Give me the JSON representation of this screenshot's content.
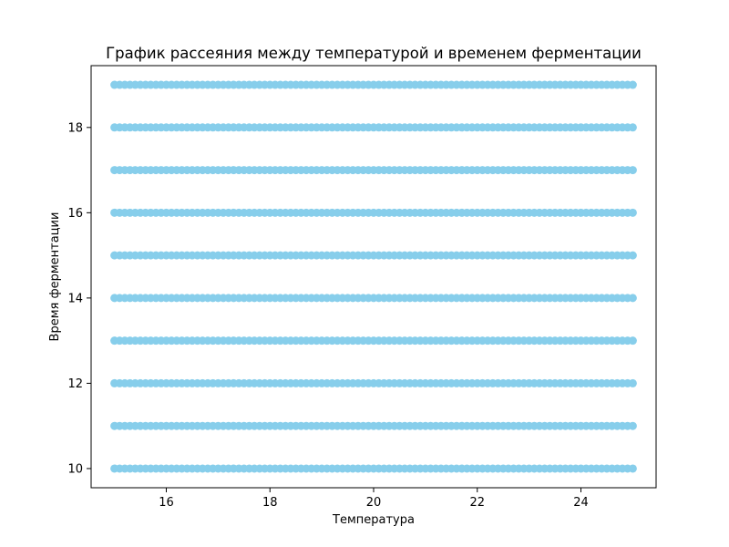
{
  "chart_data": {
    "type": "scatter",
    "title": "График рассеяния между температурой и временем ферментации",
    "xlabel": "Температура",
    "ylabel": "Время ферментации",
    "xlim": [
      14.55,
      25.45
    ],
    "ylim": [
      9.55,
      19.45
    ],
    "x_ticks": [
      16,
      18,
      20,
      22,
      24
    ],
    "y_ticks": [
      10,
      12,
      14,
      16,
      18
    ],
    "x_tick_labels": [
      "16",
      "18",
      "20",
      "22",
      "24"
    ],
    "y_tick_labels": [
      "10",
      "12",
      "14",
      "16",
      "18"
    ],
    "grid": false,
    "legend": "none",
    "marker_color": "#87CEEB",
    "series": [
      {
        "x_start": 15,
        "x_end": 25,
        "x_step": 0.1,
        "y_levels": [
          10,
          11,
          12,
          13,
          14,
          15,
          16,
          17,
          18,
          19
        ]
      }
    ]
  }
}
